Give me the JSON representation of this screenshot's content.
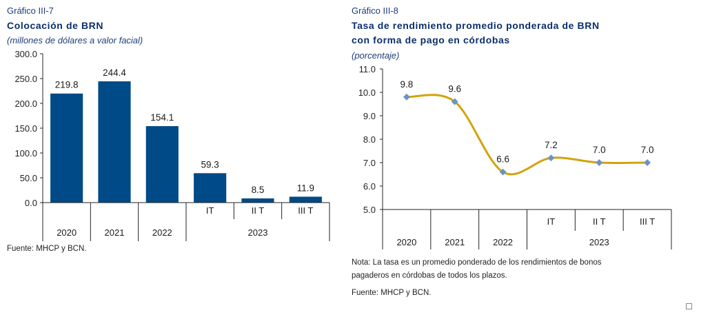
{
  "left": {
    "label": "Gráfico III-7",
    "title": "Colocación de BRN",
    "subtitle": "(millones de dólares a valor facial)",
    "source": "Fuente: MHCP y BCN."
  },
  "right": {
    "label": "Gráfico III-8",
    "title_line1": "Tasa de rendimiento promedio ponderada de BRN",
    "title_line2": "con forma de pago en córdobas",
    "subtitle": "(porcentaje)",
    "note_line1": "Nota:  La tasa es un promedio ponderado de los rendimientos de bonos",
    "note_line2": "pagaderos en córdobas de todos los plazos.",
    "source": "Fuente: MHCP y BCN."
  },
  "chart_data": [
    {
      "type": "bar",
      "categories": [
        "2020",
        "2021",
        "2022",
        "IT",
        "II T",
        "III T"
      ],
      "group_label": "2023",
      "values": [
        219.8,
        244.4,
        154.1,
        59.3,
        8.5,
        11.9
      ],
      "value_labels": [
        "219.8",
        "244.4",
        "154.1",
        "59.3",
        "8.5",
        "11.9"
      ],
      "y_ticks": [
        "300.0",
        "250.0",
        "200.0",
        "150.0",
        "100.0",
        "50.0",
        "0.0"
      ],
      "ylim": [
        0,
        300
      ],
      "color": "#004a87",
      "grid": false
    },
    {
      "type": "line",
      "categories": [
        "2020",
        "2021",
        "2022",
        "IT",
        "II T",
        "III T"
      ],
      "group_label": "2023",
      "values": [
        9.8,
        9.6,
        6.6,
        7.2,
        7.0,
        7.0
      ],
      "value_labels": [
        "9.8",
        "9.6",
        "6.6",
        "7.2",
        "7.0",
        "7.0"
      ],
      "y_ticks": [
        "11.0",
        "10.0",
        "9.0",
        "8.0",
        "7.0",
        "6.0",
        "5.0"
      ],
      "ylim": [
        5,
        11
      ],
      "line_color": "#d4a20a",
      "marker_color": "#6b93c4",
      "grid": false
    }
  ]
}
